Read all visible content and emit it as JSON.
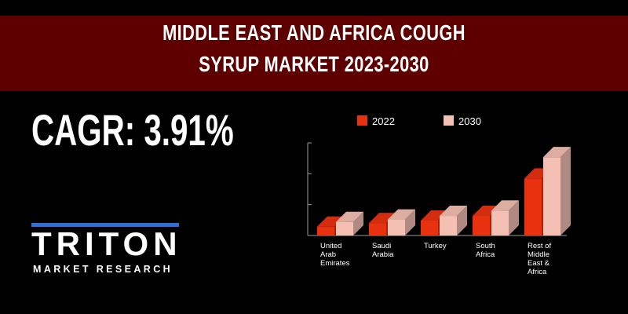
{
  "header": {
    "title_line1": "MIDDLE EAST AND AFRICA COUGH",
    "title_line2": "SYRUP MARKET 2023-2030"
  },
  "cagr": "CAGR: 3.91%",
  "logo": {
    "word": "TRITON",
    "subtitle": "MARKET RESEARCH"
  },
  "colors": {
    "banner": "#5e0000",
    "series_2022": "#e8320f",
    "series_2030": "#f5c0b4",
    "logo_accent": "#2f6fd6"
  },
  "chart_data": {
    "type": "bar",
    "categories": [
      "United Arab Emirates",
      "Saudi Arabia",
      "Turkey",
      "South Africa",
      "Rest of Middle East & Africa"
    ],
    "category_lines": [
      [
        "United",
        "Arab",
        "Emirates"
      ],
      [
        "Saudi",
        "Arabia"
      ],
      [
        "Turkey"
      ],
      [
        "South",
        "Africa"
      ],
      [
        "Rest of",
        "Middle",
        "East &",
        "Africa"
      ]
    ],
    "series": [
      {
        "name": "2022",
        "values": [
          0.25,
          0.35,
          0.42,
          0.55,
          1.6
        ]
      },
      {
        "name": "2030",
        "values": [
          0.38,
          0.45,
          0.55,
          0.7,
          2.2
        ]
      }
    ],
    "ylim": [
      0,
      2.6
    ],
    "legend": "top",
    "style": "3d"
  }
}
